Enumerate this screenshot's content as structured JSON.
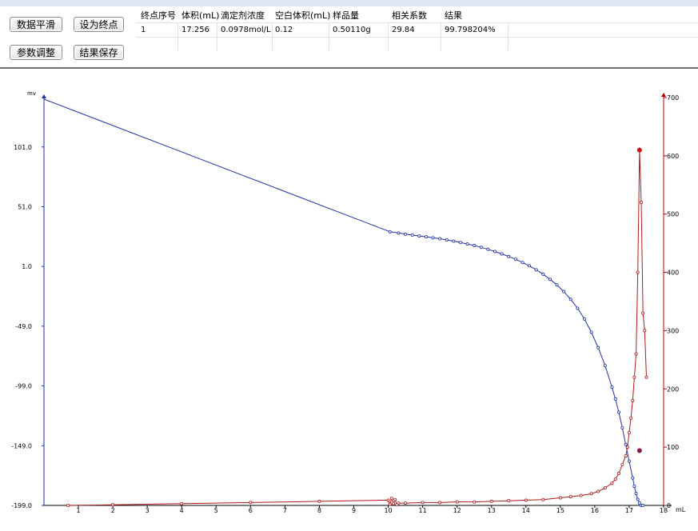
{
  "buttons": {
    "smooth": "数据平滑",
    "set_endpoint": "设为终点",
    "adjust_params": "参数调整",
    "save_result": "结果保存"
  },
  "table": {
    "headers": [
      "终点序号",
      "体积(mL)",
      "滴定剂浓度",
      "空白体积(mL)",
      "样品量",
      "相关系数",
      "结果"
    ],
    "rows": [
      [
        "1",
        "17.256",
        "0.0978mol/L",
        "0.12",
        "0.50110g",
        "29.84",
        "99.798204%"
      ]
    ]
  },
  "chart_data": {
    "type": "line",
    "y_left_label": "mv",
    "x_unit_label": "mL",
    "x_ticks": [
      "1",
      "2",
      "3",
      "4",
      "5",
      "6",
      "7",
      "8",
      "9",
      "10",
      "11",
      "12",
      "13",
      "14",
      "15",
      "16",
      "17",
      "18"
    ],
    "y_left_ticks": [
      "101.0",
      "51.0",
      "1.0",
      "-49.0",
      "-99.0",
      "-149.0",
      "-199.0"
    ],
    "y_right_ticks": [
      "700",
      "600",
      "500",
      "400",
      "300",
      "200",
      "100",
      "0"
    ],
    "xlim": [
      0,
      18
    ],
    "y_left_lim": [
      -199,
      141
    ],
    "y_right_lim": [
      0,
      700
    ],
    "colors": {
      "potential": "#1f2fb0",
      "derivative": "#b01818",
      "left_axis": "#1f2fb0",
      "right_axis": "#c00000"
    },
    "series": [
      {
        "axis": "left",
        "markers": "from x=10",
        "x": [
          0,
          10.05,
          10.3,
          10.5,
          10.7,
          10.9,
          11.1,
          11.3,
          11.5,
          11.7,
          11.9,
          12.1,
          12.3,
          12.5,
          12.7,
          12.9,
          13.1,
          13.3,
          13.5,
          13.7,
          13.9,
          14.1,
          14.3,
          14.5,
          14.7,
          14.9,
          15.1,
          15.3,
          15.5,
          15.7,
          15.9,
          16.1,
          16.3,
          16.5,
          16.6,
          16.7,
          16.8,
          16.9,
          17.0,
          17.1,
          17.15,
          17.2,
          17.25,
          17.3,
          17.35,
          17.4
        ],
        "y": [
          141,
          30,
          29,
          28,
          27.3,
          26.5,
          25.8,
          25,
          24.2,
          23.2,
          22.2,
          21,
          19.8,
          18.5,
          17,
          15.3,
          13.5,
          11.5,
          9.3,
          7,
          4.3,
          1.5,
          -1.8,
          -5.5,
          -9.8,
          -14.5,
          -20,
          -26.5,
          -34,
          -43,
          -54,
          -67,
          -82,
          -100,
          -110,
          -121,
          -134,
          -148,
          -162,
          -176,
          -183,
          -189,
          -194,
          -197,
          -199,
          -199
        ]
      },
      {
        "axis": "right",
        "x": [
          0.7,
          2,
          4,
          6,
          8,
          10,
          10.05,
          10.1,
          10.15,
          10.2,
          10.25,
          10.3,
          10.5,
          11,
          11.5,
          12,
          12.5,
          13,
          13.5,
          14,
          14.5,
          15,
          15.3,
          15.6,
          15.9,
          16.1,
          16.3,
          16.5,
          16.6,
          16.7,
          16.8,
          16.9,
          16.95,
          17.0,
          17.05,
          17.1,
          17.15,
          17.2,
          17.25,
          17.3,
          17.35,
          17.4,
          17.45,
          17.5
        ],
        "y": [
          0,
          1,
          3,
          5,
          7,
          9,
          2,
          12,
          3,
          10,
          1,
          4,
          4,
          5,
          5,
          6,
          6,
          7,
          8,
          9,
          10,
          13,
          15,
          17,
          20,
          24,
          30,
          38,
          45,
          55,
          70,
          85,
          100,
          125,
          150,
          180,
          220,
          260,
          400,
          610,
          520,
          330,
          300,
          220
        ]
      }
    ],
    "highlighted_points": [
      {
        "series": 1,
        "x": 17.3,
        "y": 610
      },
      {
        "series": 1,
        "x": 17.3,
        "y": 94
      }
    ]
  }
}
